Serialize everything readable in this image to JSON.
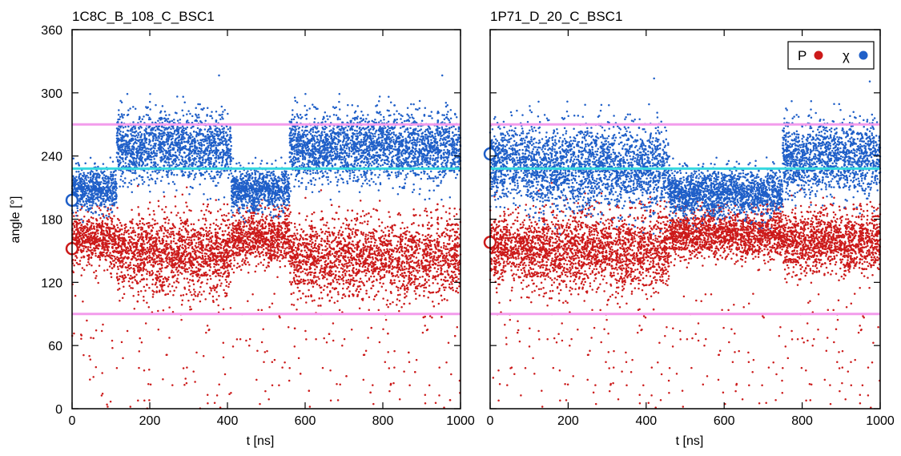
{
  "chart_data": [
    {
      "type": "scatter",
      "title": "1C8C_B_108_C_BSC1",
      "xlabel": "t [ns]",
      "ylabel": "angle [°]",
      "xlim": [
        0,
        1000
      ],
      "ylim": [
        0,
        360
      ],
      "xticks": [
        "0",
        "200",
        "400",
        "600",
        "800",
        "1000"
      ],
      "yticks": [
        "0",
        "60",
        "120",
        "180",
        "240",
        "300",
        "360"
      ],
      "grid": false,
      "reference_lines": [
        {
          "y": 270,
          "color": "#f39cec"
        },
        {
          "y": 228,
          "color": "#37d8e0"
        },
        {
          "y": 90,
          "color": "#f39cec"
        }
      ],
      "initial_markers": [
        {
          "series": "P",
          "x": 0,
          "y": 152
        },
        {
          "series": "χ",
          "x": 0,
          "y": 198
        }
      ],
      "series": [
        {
          "name": "P",
          "color": "#cc1a1a",
          "segments": [
            {
              "x": [
                0,
                115
              ],
              "center": 160,
              "spread": 24
            },
            {
              "x": [
                115,
                410
              ],
              "center": 147,
              "spread": 36
            },
            {
              "x": [
                410,
                560
              ],
              "center": 162,
              "spread": 24
            },
            {
              "x": [
                560,
                1000
              ],
              "center": 143,
              "spread": 36
            }
          ]
        },
        {
          "name": "χ",
          "color": "#1f5fc8",
          "segments": [
            {
              "x": [
                0,
                115
              ],
              "center": 208,
              "spread": 20
            },
            {
              "x": [
                115,
                410
              ],
              "center": 248,
              "spread": 32
            },
            {
              "x": [
                410,
                560
              ],
              "center": 208,
              "spread": 20
            },
            {
              "x": [
                560,
                1000
              ],
              "center": 248,
              "spread": 32
            }
          ]
        }
      ]
    },
    {
      "type": "scatter",
      "title": "1P71_D_20_C_BSC1",
      "xlabel": "t [ns]",
      "ylabel": "",
      "xlim": [
        0,
        1000
      ],
      "ylim": [
        0,
        360
      ],
      "xticks": [
        "0",
        "200",
        "400",
        "600",
        "800",
        "1000"
      ],
      "yticks": [],
      "grid": false,
      "legend": {
        "position": "top-right",
        "entries": [
          "P",
          "χ"
        ]
      },
      "reference_lines": [
        {
          "y": 270,
          "color": "#f39cec"
        },
        {
          "y": 228,
          "color": "#37d8e0"
        },
        {
          "y": 90,
          "color": "#f39cec"
        }
      ],
      "initial_markers": [
        {
          "series": "P",
          "x": 0,
          "y": 158
        },
        {
          "series": "χ",
          "x": 0,
          "y": 242
        }
      ],
      "series": [
        {
          "name": "P",
          "color": "#cc1a1a",
          "segments": [
            {
              "x": [
                0,
                90
              ],
              "center": 152,
              "spread": 30
            },
            {
              "x": [
                90,
                460
              ],
              "center": 150,
              "spread": 36
            },
            {
              "x": [
                460,
                750
              ],
              "center": 166,
              "spread": 22
            },
            {
              "x": [
                750,
                1000
              ],
              "center": 158,
              "spread": 28
            }
          ]
        },
        {
          "name": "χ",
          "color": "#1f5fc8",
          "segments": [
            {
              "x": [
                0,
                90
              ],
              "center": 236,
              "spread": 34
            },
            {
              "x": [
                90,
                460
              ],
              "center": 228,
              "spread": 40
            },
            {
              "x": [
                460,
                750
              ],
              "center": 205,
              "spread": 22
            },
            {
              "x": [
                750,
                1000
              ],
              "center": 238,
              "spread": 34
            }
          ]
        }
      ]
    }
  ]
}
